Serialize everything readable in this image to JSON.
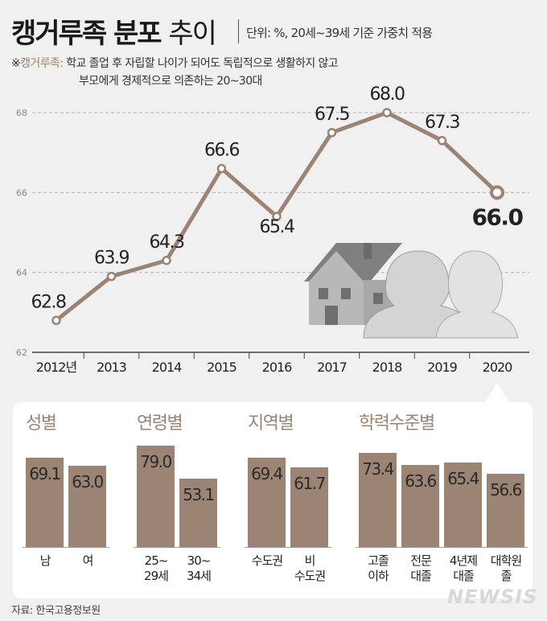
{
  "header": {
    "title_bold": "캥거루족 분포",
    "title_light": "추이",
    "unit": "단위: %, 20세~39세 기준 가중치 적용"
  },
  "note": {
    "prefix": "※",
    "term": "캥거루족:",
    "line1": "학교 졸업 후 자립할 나이가 되어도 독립적으로 생활하지 않고",
    "line2": "부모에게 경제적으로 의존하는 20~30대"
  },
  "chart_data": [
    {
      "type": "line",
      "x": [
        "2012년",
        "2013",
        "2014",
        "2015",
        "2016",
        "2017",
        "2018",
        "2019",
        "2020"
      ],
      "values": [
        62.8,
        63.9,
        64.3,
        66.6,
        65.4,
        67.5,
        68.0,
        67.3,
        66.0
      ],
      "value_labels": [
        "62.8",
        "63.9",
        "64.3",
        "66.6",
        "65.4",
        "67.5",
        "68.0",
        "67.3",
        "66.0"
      ],
      "yticks": [
        "62",
        "64",
        "66",
        "68"
      ],
      "ylim": [
        62,
        68
      ],
      "grid": true,
      "highlight_last": true,
      "color": "#9b8474"
    },
    {
      "type": "bar",
      "groups": [
        {
          "title": "성별",
          "bars": [
            {
              "label": [
                "남"
              ],
              "value": 69.1,
              "text": "69.1"
            },
            {
              "label": [
                "여"
              ],
              "value": 63.0,
              "text": "63.0"
            }
          ]
        },
        {
          "title": "연령별",
          "bars": [
            {
              "label": [
                "25~",
                "29세"
              ],
              "value": 79.0,
              "text": "79.0"
            },
            {
              "label": [
                "30~",
                "34세"
              ],
              "value": 53.1,
              "text": "53.1"
            }
          ]
        },
        {
          "title": "지역별",
          "bars": [
            {
              "label": [
                "수도권"
              ],
              "value": 69.4,
              "text": "69.4"
            },
            {
              "label": [
                "비",
                "수도권"
              ],
              "value": 61.7,
              "text": "61.7"
            }
          ]
        },
        {
          "title": "학력수준별",
          "bars": [
            {
              "label": [
                "고졸",
                "이하"
              ],
              "value": 73.4,
              "text": "73.4"
            },
            {
              "label": [
                "전문",
                "대졸"
              ],
              "value": 63.6,
              "text": "63.6"
            },
            {
              "label": [
                "4년제",
                "대졸"
              ],
              "value": 65.4,
              "text": "65.4"
            },
            {
              "label": [
                "대학원",
                "졸"
              ],
              "value": 56.6,
              "text": "56.6"
            }
          ]
        }
      ],
      "color": "#9b8474"
    }
  ],
  "footer": {
    "source": "자료: 한국고용정보원",
    "brand": "NEWSIS"
  }
}
